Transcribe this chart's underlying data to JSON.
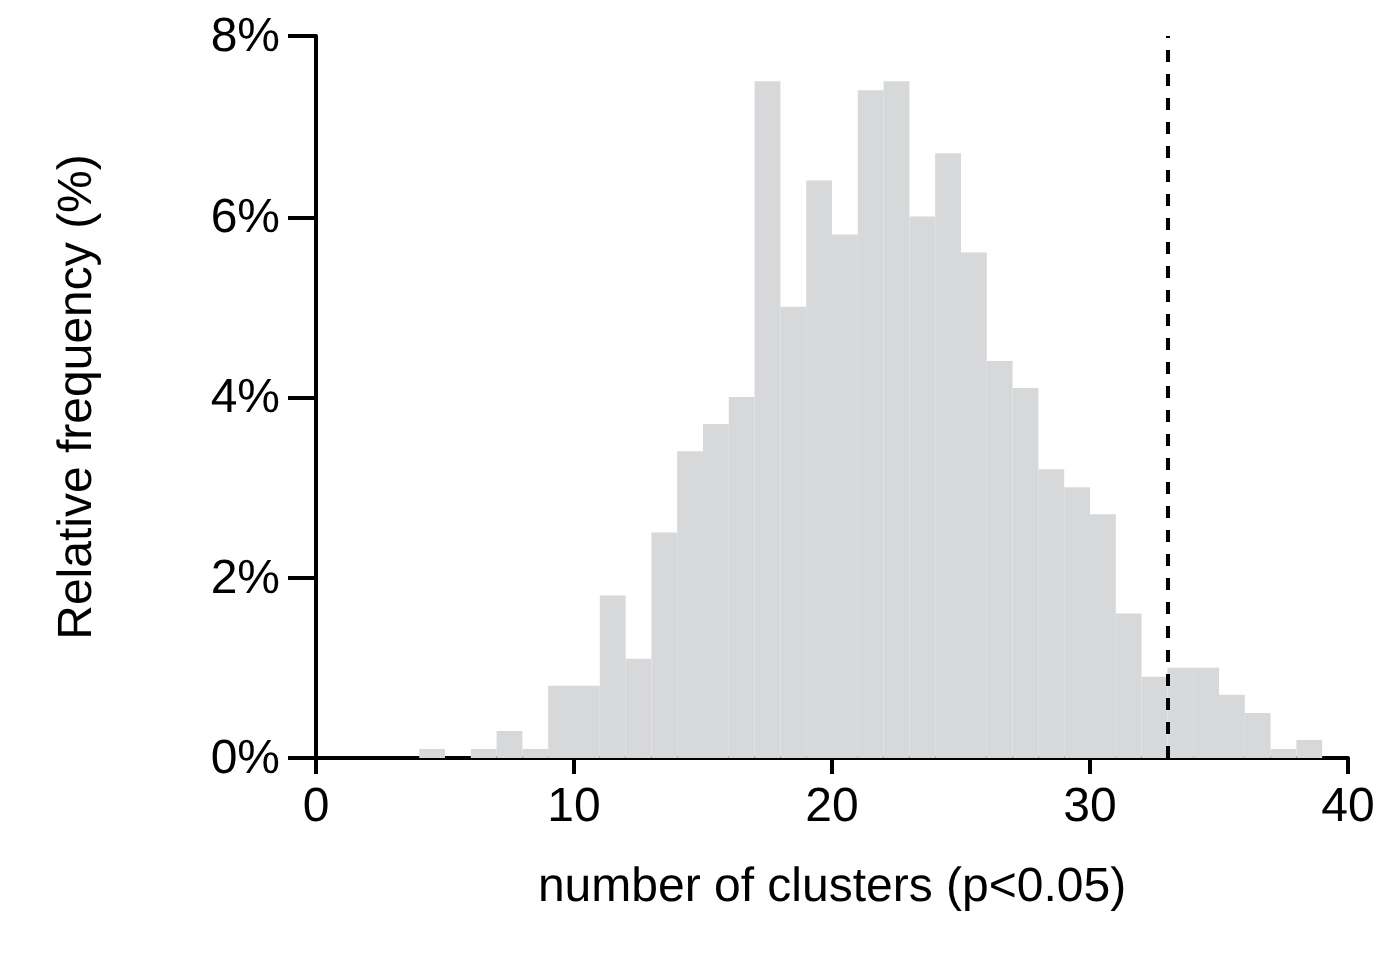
{
  "chart_data": {
    "type": "histogram",
    "xlabel": "number of clusters (p<0.05)",
    "ylabel": "Relative frequency (%)",
    "bins": [
      0,
      1,
      2,
      3,
      4,
      5,
      6,
      7,
      8,
      9,
      10,
      11,
      12,
      13,
      14,
      15,
      16,
      17,
      18,
      19,
      20,
      21,
      22,
      23,
      24,
      25,
      26,
      27,
      28,
      29,
      30,
      31,
      32,
      33,
      34,
      35,
      36,
      37,
      38,
      39,
      40
    ],
    "values": [
      0,
      0,
      0,
      0,
      0.1,
      0,
      0.1,
      0.3,
      0.1,
      0.8,
      0.8,
      1.8,
      1.1,
      2.5,
      3.4,
      3.7,
      4.0,
      7.5,
      5.0,
      6.4,
      5.8,
      7.4,
      7.5,
      6.0,
      6.7,
      5.6,
      4.4,
      4.1,
      3.2,
      3.0,
      2.7,
      1.6,
      0.9,
      1.0,
      1.0,
      0.7,
      0.5,
      0.1,
      0.2,
      0
    ],
    "color": "#d7d8da",
    "xlim": [
      0,
      40
    ],
    "xticks": [
      0,
      10,
      20,
      30,
      40
    ],
    "ylim": [
      0,
      8
    ],
    "yticks": [
      {
        "value": 0,
        "label": "0%"
      },
      {
        "value": 2,
        "label": "2%"
      },
      {
        "value": 4,
        "label": "4%"
      },
      {
        "value": 6,
        "label": "6%"
      },
      {
        "value": 8,
        "label": "8%"
      }
    ],
    "ref_lines": [
      {
        "axis": "x",
        "value": 33,
        "color": "#000000",
        "line_style": "dashed"
      }
    ],
    "grid": false
  }
}
